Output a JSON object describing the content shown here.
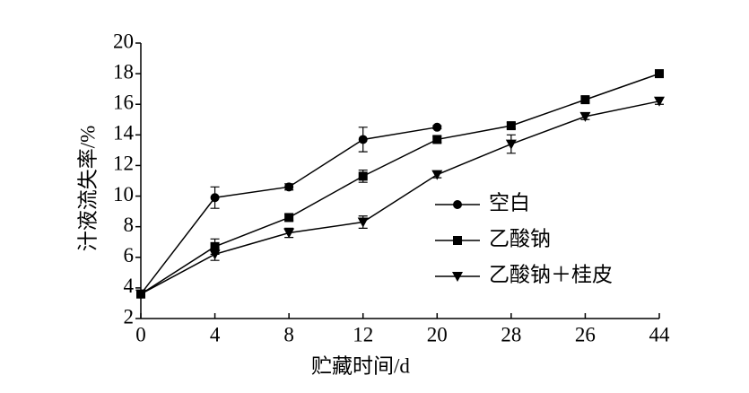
{
  "chart_data": {
    "type": "line",
    "xlabel": "贮藏时间/d",
    "ylabel": "汁液流失率/%",
    "categories": [
      "0",
      "4",
      "8",
      "12",
      "20",
      "28",
      "26",
      "44"
    ],
    "ylim": [
      2,
      20
    ],
    "yticks": [
      2,
      4,
      6,
      8,
      10,
      12,
      14,
      16,
      18,
      20
    ],
    "series": [
      {
        "name": "空白",
        "color": "#000000",
        "marker": "circle",
        "values": [
          3.6,
          9.9,
          10.6,
          13.7,
          14.5,
          null,
          null,
          null
        ],
        "errors": [
          0.1,
          0.7,
          0.2,
          0.8,
          0.1,
          null,
          null,
          null
        ]
      },
      {
        "name": "乙酸钠",
        "color": "#000000",
        "marker": "square",
        "values": [
          3.6,
          6.7,
          8.6,
          11.3,
          13.7,
          14.6,
          16.3,
          18.0
        ],
        "errors": [
          0.1,
          0.5,
          0.2,
          0.4,
          0.2,
          0.2,
          0.2,
          0.1
        ]
      },
      {
        "name": "乙酸钠＋桂皮",
        "color": "#000000",
        "marker": "triangle-down",
        "values": [
          3.6,
          6.2,
          7.6,
          8.3,
          11.4,
          13.4,
          15.2,
          16.2
        ],
        "errors": [
          0.1,
          0.4,
          0.3,
          0.4,
          0.2,
          0.6,
          0.2,
          0.2
        ]
      }
    ]
  }
}
